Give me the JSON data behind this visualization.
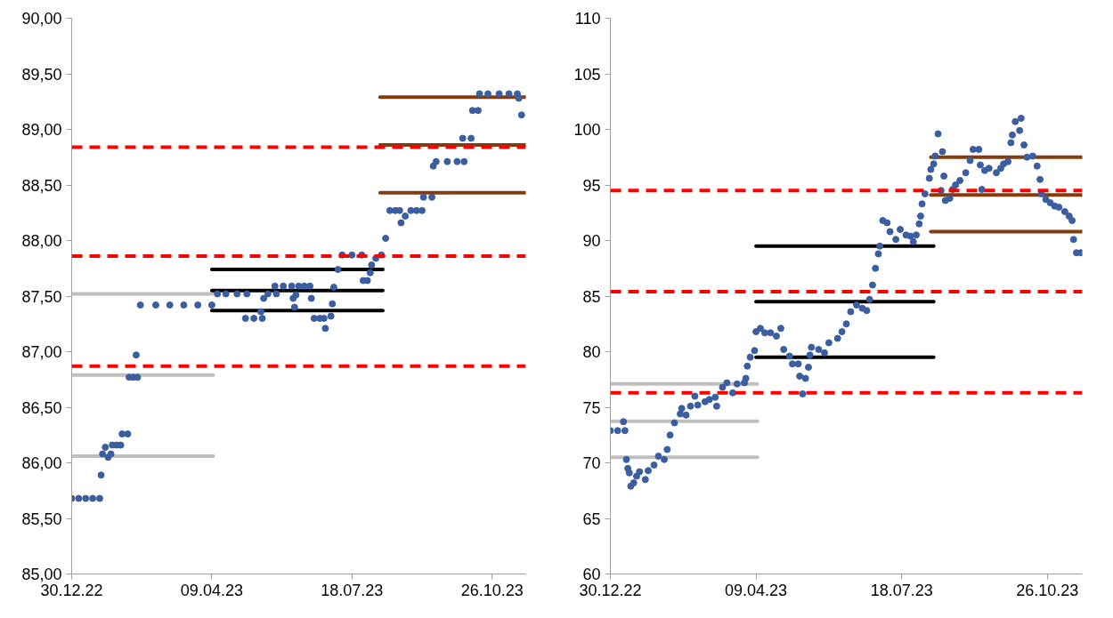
{
  "chart_data": [
    {
      "type": "scatter",
      "marker": "circle",
      "grid": false,
      "xlim": [
        "2022-12-30",
        "2023-11-19"
      ],
      "xticks": [
        {
          "value": "2022-12-30",
          "label": "30.12.22"
        },
        {
          "value": "2023-04-09",
          "label": "09.04.23"
        },
        {
          "value": "2023-07-18",
          "label": "18.07.23"
        },
        {
          "value": "2023-10-26",
          "label": "26.10.23"
        }
      ],
      "ylim": [
        85,
        90
      ],
      "yticks": [
        {
          "value": 85,
          "label": "85,00"
        },
        {
          "value": 85.5,
          "label": "85,50"
        },
        {
          "value": 86,
          "label": "86,00"
        },
        {
          "value": 86.5,
          "label": "86,50"
        },
        {
          "value": 87,
          "label": "87,00"
        },
        {
          "value": 87.5,
          "label": "87,50"
        },
        {
          "value": 88,
          "label": "88,00"
        },
        {
          "value": 88.5,
          "label": "88,50"
        },
        {
          "value": 89,
          "label": "89,00"
        },
        {
          "value": 89.5,
          "label": "89,50"
        },
        {
          "value": 90,
          "label": "90,00"
        }
      ],
      "series": [
        {
          "color": "#3a5e9f",
          "x": [
            "2022-12-30",
            "2023-01-04",
            "2023-01-09",
            "2023-01-14",
            "2023-01-19",
            "2023-01-20",
            "2023-01-21",
            "2023-01-23",
            "2023-01-25",
            "2023-01-27",
            "2023-01-28",
            "2023-01-31",
            "2023-02-03",
            "2023-02-04",
            "2023-02-08",
            "2023-02-09",
            "2023-02-12",
            "2023-02-15",
            "2023-02-14",
            "2023-02-17",
            "2023-02-28",
            "2023-03-10",
            "2023-03-20",
            "2023-03-30",
            "2023-04-09",
            "2023-04-13",
            "2023-04-19",
            "2023-04-27",
            "2023-05-04",
            "2023-05-03",
            "2023-05-09",
            "2023-05-15",
            "2023-05-14",
            "2023-05-16",
            "2023-05-19",
            "2023-05-25",
            "2023-05-24",
            "2023-05-30",
            "2023-06-05",
            "2023-06-06",
            "2023-06-07",
            "2023-06-08",
            "2023-06-10",
            "2023-06-14",
            "2023-06-18",
            "2023-06-19",
            "2023-06-21",
            "2023-06-25",
            "2023-06-28",
            "2023-06-29",
            "2023-07-03",
            "2023-07-04",
            "2023-07-05",
            "2023-07-08",
            "2023-07-11",
            "2023-07-18",
            "2023-07-25",
            "2023-07-26",
            "2023-07-29",
            "2023-07-31",
            "2023-08-01",
            "2023-08-04",
            "2023-08-08",
            "2023-08-11",
            "2023-08-14",
            "2023-08-18",
            "2023-08-21",
            "2023-08-22",
            "2023-08-25",
            "2023-08-29",
            "2023-09-02",
            "2023-09-06",
            "2023-09-07",
            "2023-09-13",
            "2023-09-14",
            "2023-09-16",
            "2023-09-24",
            "2023-10-01",
            "2023-10-06",
            "2023-10-05",
            "2023-10-11",
            "2023-10-12",
            "2023-10-16",
            "2023-10-17",
            "2023-10-23",
            "2023-10-31",
            "2023-11-07",
            "2023-11-13",
            "2023-11-14",
            "2023-11-16"
          ],
          "values": [
            85.68,
            85.68,
            85.68,
            85.68,
            85.68,
            85.89,
            86.08,
            86.14,
            86.05,
            86.08,
            86.16,
            86.16,
            86.16,
            86.26,
            86.26,
            86.77,
            86.77,
            86.77,
            86.97,
            87.42,
            87.42,
            87.42,
            87.42,
            87.42,
            87.42,
            87.52,
            87.52,
            87.52,
            87.52,
            87.3,
            87.3,
            87.3,
            87.36,
            87.48,
            87.52,
            87.52,
            87.59,
            87.59,
            87.59,
            87.48,
            87.4,
            87.51,
            87.59,
            87.59,
            87.59,
            87.48,
            87.3,
            87.3,
            87.3,
            87.21,
            87.32,
            87.43,
            87.58,
            87.74,
            87.87,
            87.87,
            87.87,
            87.64,
            87.64,
            87.71,
            87.78,
            87.84,
            87.87,
            88.02,
            88.27,
            88.27,
            88.27,
            88.16,
            88.22,
            88.27,
            88.27,
            88.27,
            88.39,
            88.39,
            88.67,
            88.71,
            88.71,
            88.71,
            88.71,
            88.92,
            88.92,
            89.17,
            89.17,
            89.32,
            89.32,
            89.32,
            89.32,
            89.32,
            89.28,
            89.13
          ]
        },
        {
          "type": "line",
          "marker": "none",
          "color": "#bfbfbf",
          "x": [
            "2022-12-30",
            "2023-04-10"
          ],
          "values": [
            87.52,
            87.52
          ]
        },
        {
          "type": "line",
          "marker": "none",
          "color": "#bfbfbf",
          "x": [
            "2022-12-30",
            "2023-04-10"
          ],
          "values": [
            86.79,
            86.79
          ]
        },
        {
          "type": "line",
          "marker": "none",
          "color": "#bfbfbf",
          "x": [
            "2022-12-30",
            "2023-04-10"
          ],
          "values": [
            86.06,
            86.06
          ]
        },
        {
          "type": "line",
          "marker": "none",
          "color": "#000000",
          "x": [
            "2023-04-09",
            "2023-08-09"
          ],
          "values": [
            87.74,
            87.74
          ]
        },
        {
          "type": "line",
          "marker": "none",
          "color": "#000000",
          "x": [
            "2023-04-09",
            "2023-08-09"
          ],
          "values": [
            87.55,
            87.55
          ]
        },
        {
          "type": "line",
          "marker": "none",
          "color": "#000000",
          "x": [
            "2023-04-09",
            "2023-08-09"
          ],
          "values": [
            87.37,
            87.37
          ]
        },
        {
          "type": "line",
          "marker": "none",
          "color": "#843c0c",
          "x": [
            "2023-08-07",
            "2023-11-19"
          ],
          "values": [
            89.29,
            89.29
          ]
        },
        {
          "type": "line",
          "marker": "none",
          "color": "#843c0c",
          "x": [
            "2023-08-07",
            "2023-11-19"
          ],
          "values": [
            88.86,
            88.86
          ]
        },
        {
          "type": "line",
          "marker": "none",
          "color": "#843c0c",
          "x": [
            "2023-08-07",
            "2023-11-19"
          ],
          "values": [
            88.43,
            88.43
          ]
        }
      ],
      "ref_lines": [
        {
          "axis": "y",
          "value": 88.84,
          "color": "#ff0000",
          "line_style": "dashed"
        },
        {
          "axis": "y",
          "value": 87.86,
          "color": "#ff0000",
          "line_style": "dashed"
        },
        {
          "axis": "y",
          "value": 86.87,
          "color": "#ff0000",
          "line_style": "dashed"
        }
      ]
    },
    {
      "type": "scatter",
      "marker": "circle",
      "grid": false,
      "xlim": [
        "2022-12-30",
        "2023-11-19"
      ],
      "xticks": [
        {
          "value": "2022-12-30",
          "label": "30.12.22"
        },
        {
          "value": "2023-04-09",
          "label": "09.04.23"
        },
        {
          "value": "2023-07-18",
          "label": "18.07.23"
        },
        {
          "value": "2023-10-26",
          "label": "26.10.23"
        }
      ],
      "ylim": [
        60,
        110
      ],
      "yticks": [
        60,
        65,
        70,
        75,
        80,
        85,
        90,
        95,
        100,
        105,
        110
      ],
      "series": [
        {
          "color": "#3a5e9f",
          "x": [
            "2022-12-30",
            "2023-01-04",
            "2023-01-08",
            "2023-01-09",
            "2023-01-10",
            "2023-01-11",
            "2023-01-12",
            "2023-01-13",
            "2023-01-15",
            "2023-01-17",
            "2023-01-19",
            "2023-01-23",
            "2023-01-25",
            "2023-01-29",
            "2023-02-01",
            "2023-02-05",
            "2023-02-07",
            "2023-02-09",
            "2023-02-12",
            "2023-02-16",
            "2023-02-17",
            "2023-02-20",
            "2023-02-23",
            "2023-02-26",
            "2023-02-28",
            "2023-03-05",
            "2023-03-08",
            "2023-03-12",
            "2023-03-13",
            "2023-03-17",
            "2023-03-20",
            "2023-03-24",
            "2023-03-27",
            "2023-04-01",
            "2023-04-02",
            "2023-04-03",
            "2023-04-05",
            "2023-04-08",
            "2023-04-09",
            "2023-04-12",
            "2023-04-15",
            "2023-04-19",
            "2023-04-23",
            "2023-04-26",
            "2023-04-28",
            "2023-05-02",
            "2023-05-04",
            "2023-05-08",
            "2023-05-09",
            "2023-05-11",
            "2023-05-13",
            "2023-05-15",
            "2023-05-16",
            "2023-05-17",
            "2023-05-22",
            "2023-05-26",
            "2023-05-29",
            "2023-06-04",
            "2023-06-07",
            "2023-06-10",
            "2023-06-13",
            "2023-06-17",
            "2023-06-21",
            "2023-06-24",
            "2023-06-26",
            "2023-06-28",
            "2023-06-30",
            "2023-07-02",
            "2023-07-03",
            "2023-07-05",
            "2023-07-08",
            "2023-07-10",
            "2023-07-14",
            "2023-07-17",
            "2023-07-21",
            "2023-07-24",
            "2023-07-26",
            "2023-07-28",
            "2023-07-30",
            "2023-07-31",
            "2023-08-01",
            "2023-08-03",
            "2023-08-06",
            "2023-08-07",
            "2023-08-09",
            "2023-08-10",
            "2023-08-12",
            "2023-08-14",
            "2023-08-15",
            "2023-08-16",
            "2023-08-17",
            "2023-08-20",
            "2023-08-22",
            "2023-08-24",
            "2023-08-27",
            "2023-08-31",
            "2023-09-03",
            "2023-09-05",
            "2023-09-09",
            "2023-09-10",
            "2023-09-11",
            "2023-09-13",
            "2023-09-16",
            "2023-09-21",
            "2023-09-24",
            "2023-09-26",
            "2023-09-29",
            "2023-10-01",
            "2023-10-02",
            "2023-10-04",
            "2023-10-08",
            "2023-10-07",
            "2023-10-10",
            "2023-10-12",
            "2023-10-16",
            "2023-10-19",
            "2023-10-21",
            "2023-10-22",
            "2023-10-25",
            "2023-10-28",
            "2023-10-31",
            "2023-11-03",
            "2023-11-07",
            "2023-11-10",
            "2023-11-12",
            "2023-11-13",
            "2023-11-15",
            "2023-11-18"
          ],
          "values": [
            72.9,
            72.9,
            73.7,
            72.9,
            70.3,
            69.5,
            69.1,
            67.9,
            68.2,
            68.8,
            69.2,
            68.5,
            69.3,
            69.8,
            70.6,
            70.3,
            71.2,
            72.5,
            73.6,
            74.4,
            74.9,
            74.3,
            75.1,
            76.0,
            75.2,
            75.5,
            75.7,
            75.9,
            75.1,
            76.8,
            77.2,
            76.3,
            77.1,
            77.2,
            77.6,
            78.7,
            79.5,
            80.1,
            81.8,
            82.1,
            81.7,
            81.7,
            81.4,
            82.1,
            80.2,
            79.6,
            78.9,
            78.9,
            77.8,
            76.2,
            77.6,
            78.6,
            79.7,
            80.4,
            80.2,
            79.9,
            80.8,
            81.2,
            81.8,
            82.5,
            83.6,
            84.2,
            83.9,
            83.7,
            84.7,
            86.0,
            87.5,
            88.8,
            89.5,
            91.8,
            91.6,
            90.8,
            90.1,
            91.0,
            90.5,
            90.4,
            89.9,
            90.5,
            91.5,
            92.2,
            93.3,
            94.2,
            95.6,
            96.4,
            96.9,
            97.6,
            99.6,
            94.5,
            98.0,
            95.8,
            93.6,
            93.8,
            94.6,
            95.0,
            95.4,
            96.1,
            97.2,
            98.2,
            98.2,
            96.8,
            94.6,
            96.3,
            96.5,
            96.1,
            96.5,
            96.9,
            97.1,
            98.8,
            99.5,
            100.7,
            101.0,
            99.9,
            98.6,
            97.5,
            97.6,
            96.7,
            95.5,
            94.2,
            93.7,
            93.4,
            93.1,
            93.0,
            92.6,
            92.2,
            91.8,
            90.1,
            88.9,
            88.9
          ]
        },
        {
          "type": "line",
          "marker": "none",
          "color": "#bfbfbf",
          "x": [
            "2022-12-30",
            "2023-04-10"
          ],
          "values": [
            77.1,
            77.1
          ]
        },
        {
          "type": "line",
          "marker": "none",
          "color": "#bfbfbf",
          "x": [
            "2022-12-30",
            "2023-04-10"
          ],
          "values": [
            73.75,
            73.75
          ]
        },
        {
          "type": "line",
          "marker": "none",
          "color": "#bfbfbf",
          "x": [
            "2022-12-30",
            "2023-04-10"
          ],
          "values": [
            70.5,
            70.5
          ]
        },
        {
          "type": "line",
          "marker": "none",
          "color": "#000000",
          "x": [
            "2023-04-09",
            "2023-08-09"
          ],
          "values": [
            89.5,
            89.5
          ]
        },
        {
          "type": "line",
          "marker": "none",
          "color": "#000000",
          "x": [
            "2023-04-09",
            "2023-08-09"
          ],
          "values": [
            84.5,
            84.5
          ]
        },
        {
          "type": "line",
          "marker": "none",
          "color": "#000000",
          "x": [
            "2023-04-09",
            "2023-08-09"
          ],
          "values": [
            79.5,
            79.5
          ]
        },
        {
          "type": "line",
          "marker": "none",
          "color": "#843c0c",
          "x": [
            "2023-08-07",
            "2023-11-19"
          ],
          "values": [
            97.5,
            97.5
          ]
        },
        {
          "type": "line",
          "marker": "none",
          "color": "#843c0c",
          "x": [
            "2023-08-07",
            "2023-11-19"
          ],
          "values": [
            94.1,
            94.1
          ]
        },
        {
          "type": "line",
          "marker": "none",
          "color": "#843c0c",
          "x": [
            "2023-08-07",
            "2023-11-19"
          ],
          "values": [
            90.8,
            90.8
          ]
        }
      ],
      "ref_lines": [
        {
          "axis": "y",
          "value": 94.5,
          "color": "#ff0000",
          "line_style": "dashed"
        },
        {
          "axis": "y",
          "value": 85.4,
          "color": "#ff0000",
          "line_style": "dashed"
        },
        {
          "axis": "y",
          "value": 76.3,
          "color": "#ff0000",
          "line_style": "dashed"
        }
      ]
    }
  ]
}
